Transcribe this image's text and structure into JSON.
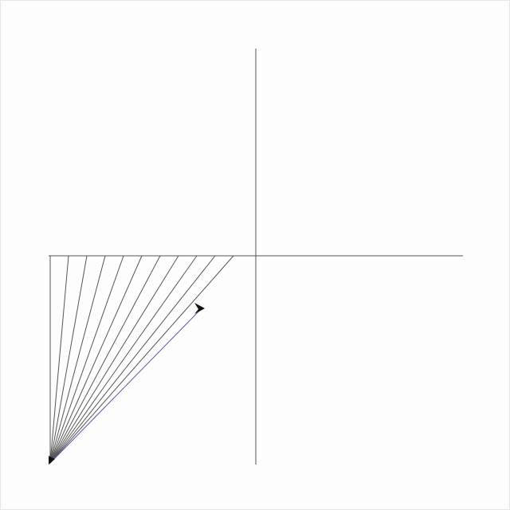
{
  "canvas": {
    "background": "#fdfdfd",
    "axis_color": "#555555",
    "line_color": "#555555",
    "accent_line_color": "#5a5aa8",
    "cursor_color": "#111111",
    "cursor_shape": "turtle-arrow-icon"
  },
  "fan": {
    "line_count": 11,
    "apex": "bottom-left",
    "description_shown": false
  }
}
